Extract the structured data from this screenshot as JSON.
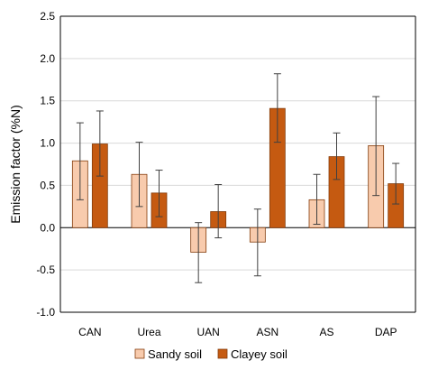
{
  "chart_data": {
    "type": "bar",
    "categories": [
      "CAN",
      "Urea",
      "UAN",
      "ASN",
      "AS",
      "DAP"
    ],
    "ylabel": "Emission factor (%N)",
    "ylim": [
      -1.0,
      2.5
    ],
    "yticks": [
      "2.5",
      "2.0",
      "1.5",
      "1.0",
      "0.5",
      "0.0",
      "-0.5",
      "-1.0"
    ],
    "ytick_values": [
      2.5,
      2.0,
      1.5,
      1.0,
      0.5,
      0.0,
      -0.5,
      -1.0
    ],
    "grid": true,
    "legend": "bottom",
    "series": [
      {
        "name": "Sandy soil",
        "color": "#f8cbad",
        "values": [
          0.79,
          0.63,
          -0.29,
          -0.17,
          0.33,
          0.97
        ],
        "err_low": [
          0.33,
          0.25,
          -0.65,
          -0.57,
          0.04,
          0.38
        ],
        "err_high": [
          1.24,
          1.01,
          0.06,
          0.22,
          0.63,
          1.55
        ]
      },
      {
        "name": "Clayey soil",
        "color": "#c55a11",
        "values": [
          0.99,
          0.41,
          0.19,
          1.41,
          0.84,
          0.52
        ],
        "err_low": [
          0.61,
          0.13,
          -0.12,
          1.01,
          0.57,
          0.28
        ],
        "err_high": [
          1.38,
          0.68,
          0.51,
          1.82,
          1.12,
          0.76
        ]
      }
    ]
  }
}
